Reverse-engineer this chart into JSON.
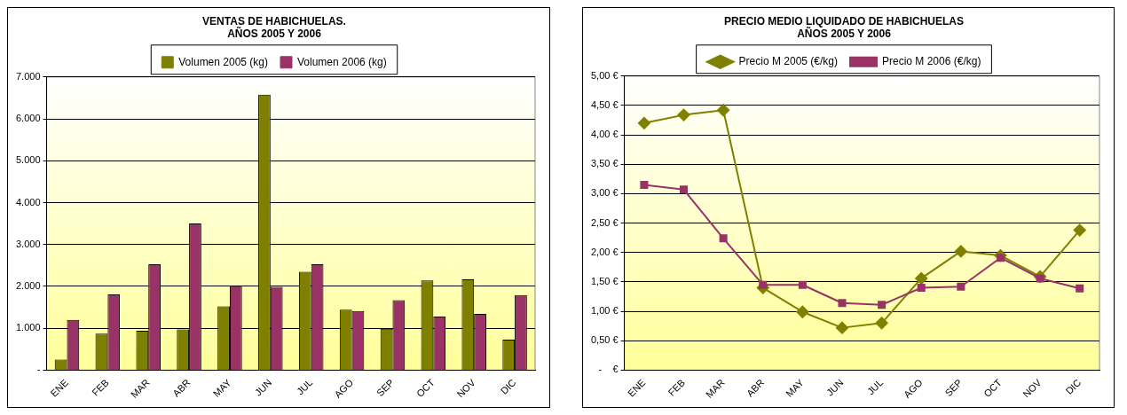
{
  "chart_data": [
    {
      "type": "bar",
      "title": "VENTAS DE HABICHUELAS.\nAÑOS 2005 Y 2006",
      "categories": [
        "ENE",
        "FEB",
        "MAR",
        "ABR",
        "MAY",
        "JUN",
        "JUL",
        "AGO",
        "SEP",
        "OCT",
        "NOV",
        "DIC"
      ],
      "series": [
        {
          "name": "Volumen 2005 (kg)",
          "color": "#808000",
          "values": [
            250,
            870,
            940,
            970,
            1520,
            6580,
            2350,
            1440,
            990,
            2140,
            2170,
            730
          ]
        },
        {
          "name": "Volumen 2006 (kg)",
          "color": "#993366",
          "values": [
            1200,
            1810,
            2530,
            3500,
            2020,
            1990,
            2530,
            1410,
            1670,
            1280,
            1340,
            1790
          ]
        }
      ],
      "ylim": [
        0,
        7000
      ],
      "yticks": [
        {
          "value": 0,
          "label": "-"
        },
        {
          "value": 1000,
          "label": "1.000"
        },
        {
          "value": 2000,
          "label": "2.000"
        },
        {
          "value": 3000,
          "label": "3.000"
        },
        {
          "value": 4000,
          "label": "4.000"
        },
        {
          "value": 5000,
          "label": "5.000"
        },
        {
          "value": 6000,
          "label": "6.000"
        },
        {
          "value": 7000,
          "label": "7.000"
        }
      ],
      "grid": "y",
      "legend": "top"
    },
    {
      "type": "line",
      "title": "PRECIO MEDIO LIQUIDADO DE HABICHUELAS\nAÑOS 2005 Y 2006",
      "categories": [
        "ENE",
        "FEB",
        "MAR",
        "ABR",
        "MAY",
        "JUN",
        "JUL",
        "AGO",
        "SEP",
        "OCT",
        "NOV",
        "DIC"
      ],
      "series": [
        {
          "name": "Precio M 2005 (€/kg)",
          "color": "#808000",
          "marker": "diamond",
          "values": [
            4.2,
            4.34,
            4.42,
            1.4,
            0.99,
            0.72,
            0.8,
            1.56,
            2.02,
            1.95,
            1.59,
            2.38
          ]
        },
        {
          "name": "Precio M 2006 (€/kg)",
          "color": "#993366",
          "marker": "square",
          "values": [
            3.15,
            3.07,
            2.24,
            1.45,
            1.45,
            1.14,
            1.11,
            1.4,
            1.42,
            1.91,
            1.56,
            1.39
          ]
        }
      ],
      "ylim": [
        0,
        5
      ],
      "yticks": [
        {
          "value": 0,
          "label": "-    €"
        },
        {
          "value": 0.5,
          "label": "0,50 €"
        },
        {
          "value": 1,
          "label": "1,00 €"
        },
        {
          "value": 1.5,
          "label": "1,50 €"
        },
        {
          "value": 2,
          "label": "2,00 €"
        },
        {
          "value": 2.5,
          "label": "2,50 €"
        },
        {
          "value": 3,
          "label": "3,00 €"
        },
        {
          "value": 3.5,
          "label": "3,50 €"
        },
        {
          "value": 4,
          "label": "4,00 €"
        },
        {
          "value": 4.5,
          "label": "4,50 €"
        },
        {
          "value": 5,
          "label": "5,00 €"
        }
      ],
      "grid": "y",
      "legend": "top",
      "line_style": "solid"
    }
  ]
}
